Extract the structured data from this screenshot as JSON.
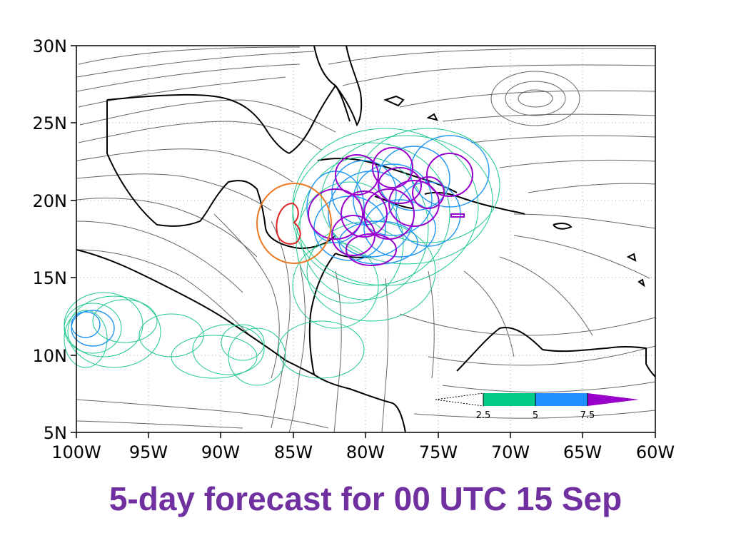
{
  "caption": "5-day forecast for 00 UTC 15 Sep",
  "map": {
    "lat_ticks": [
      "30N",
      "25N",
      "20N",
      "15N",
      "10N",
      "5N"
    ],
    "lon_ticks": [
      "100W",
      "95W",
      "90W",
      "85W",
      "80W",
      "75W",
      "70W",
      "65W",
      "60W"
    ],
    "lat_range": [
      5,
      30
    ],
    "lon_range": [
      -100,
      -60
    ],
    "grid": "dotted"
  },
  "colorbar": {
    "labels": [
      "2.5",
      "5",
      "7.5"
    ],
    "colors": [
      "#00cc88",
      "#1e90ff",
      "#9900cc"
    ]
  },
  "colors": {
    "caption": "#7030a0",
    "streamline": "#666666",
    "coast": "#000000",
    "teal": "#1fc98c",
    "blue": "#2196f3",
    "purple": "#9900cc",
    "orange": "#ee7722",
    "red": "#dd2222"
  }
}
